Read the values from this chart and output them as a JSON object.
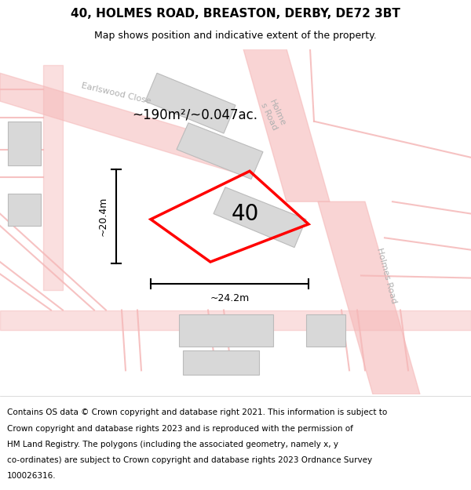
{
  "title": "40, HOLMES ROAD, BREASTON, DERBY, DE72 3BT",
  "subtitle": "Map shows position and indicative extent of the property.",
  "footer_lines": [
    "Contains OS data © Crown copyright and database right 2021. This information is subject to",
    "Crown copyright and database rights 2023 and is reproduced with the permission of",
    "HM Land Registry. The polygons (including the associated geometry, namely x, y",
    "co-ordinates) are subject to Crown copyright and database rights 2023 Ordnance Survey",
    "100026316."
  ],
  "map_bg": "#f0f0f0",
  "title_fontsize": 11,
  "subtitle_fontsize": 9,
  "footer_fontsize": 7.5,
  "property_label": "40",
  "area_label": "~190m²/~0.047ac.",
  "dim_width_label": "~24.2m",
  "dim_height_label": "~20.4m",
  "road_color": "#f5b8b8",
  "building_color": "#d8d8d8",
  "property_edge_color": "#ff0000",
  "road_label_color": "#b0b0b0"
}
